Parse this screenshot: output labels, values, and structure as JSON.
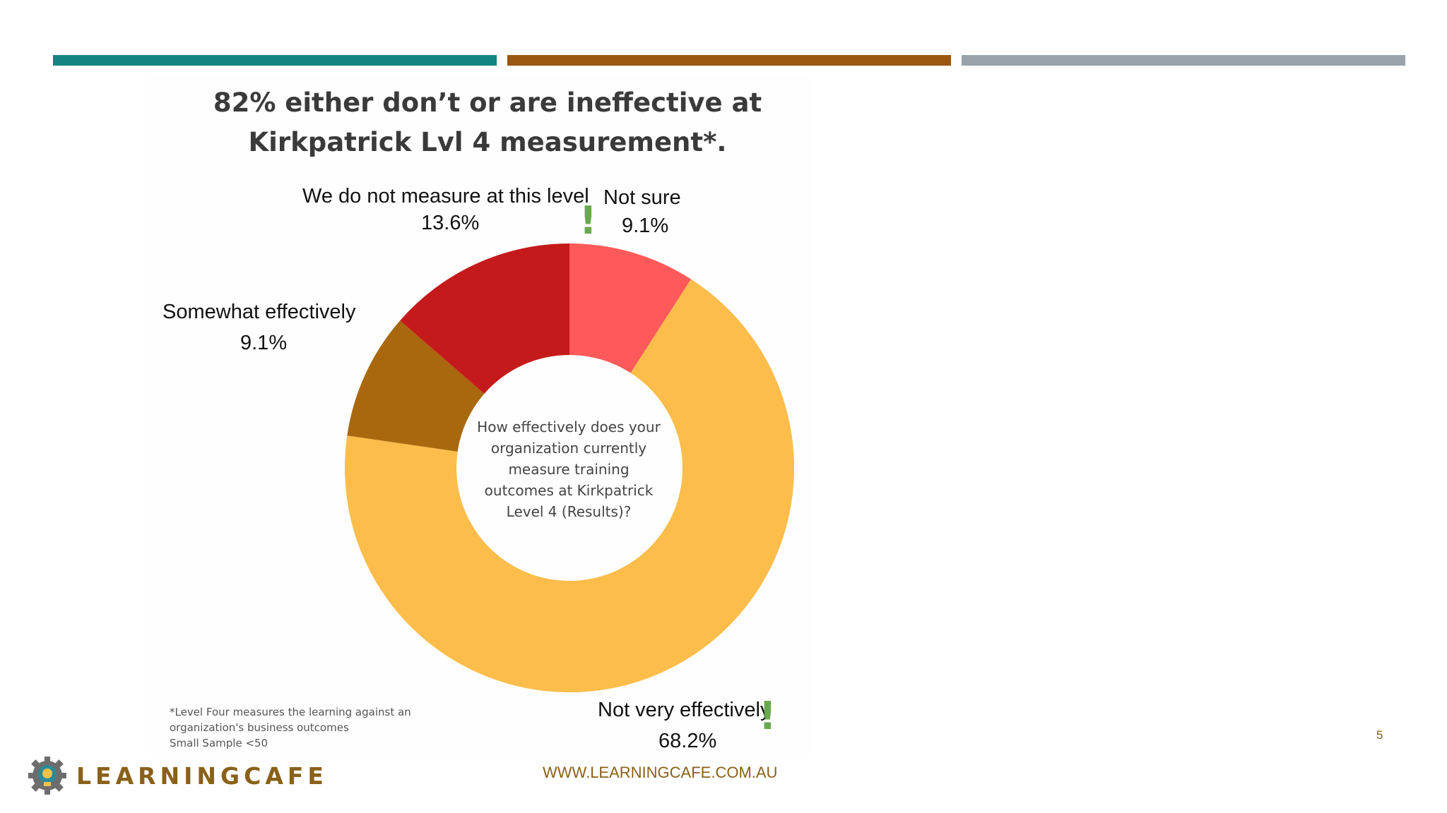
{
  "slide": {
    "accent_bars": [
      "#128583",
      "#9b5610",
      "#9aa2ab"
    ],
    "title_lines": [
      "82% either don’t or are ineffective at",
      "Kirkpatrick Lvl 4 measurement*."
    ],
    "title_color": "#3a3a3a",
    "footnote_lines": [
      "*Level Four measures the learning against an",
      "organization's business outcomes",
      "Small Sample <50"
    ],
    "brand": "LEARNINGCAFE",
    "brand_color": "#8a6119",
    "url": "WWW.LEARNINGCAFE.COM.AU",
    "url_color": "#8a6119",
    "page_number": "5",
    "exclamation_color": "#6aa84f",
    "exclamation_mark": "!"
  },
  "chart_data": {
    "type": "pie",
    "donut": true,
    "center_text_lines": [
      "How effectively does your",
      "organization currently",
      "measure training",
      "outcomes at Kirkpatrick",
      "Level 4 (Results)?"
    ],
    "slices": [
      {
        "label": "Not sure",
        "value": 9.1,
        "display": "9.1%",
        "color": "#ff5a5a"
      },
      {
        "label": "Not very effectively",
        "value": 68.2,
        "display": "68.2%",
        "color": "#fdbd4b"
      },
      {
        "label": "Somewhat effectively",
        "value": 9.1,
        "display": "9.1%",
        "color": "#a9680e"
      },
      {
        "label": "We do not measure at this level",
        "value": 13.6,
        "display": "13.6%",
        "color": "#c51a1b"
      }
    ]
  }
}
